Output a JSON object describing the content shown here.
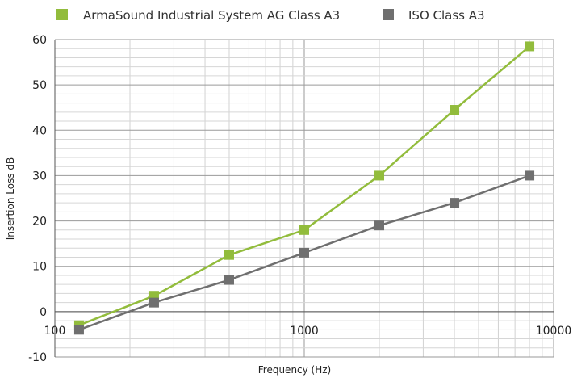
{
  "chart_data": {
    "type": "line",
    "xlabel": "Frequency (Hz)",
    "ylabel": "Insertion Loss dB",
    "x_scale": "log",
    "xlim": [
      100,
      10000
    ],
    "ylim": [
      -10,
      60
    ],
    "x_ticks": [
      100,
      1000,
      10000
    ],
    "y_ticks": [
      -10,
      0,
      10,
      20,
      30,
      40,
      50,
      60
    ],
    "grid": true,
    "legend": "top",
    "x": [
      125,
      250,
      500,
      1000,
      2000,
      4000,
      8000
    ],
    "series": [
      {
        "name": "ArmaSound Industrial System AG Class A3",
        "color": "#92bc3c",
        "values": [
          -3,
          3.5,
          12.5,
          18,
          30,
          44.5,
          58.5
        ]
      },
      {
        "name": "ISO Class A3",
        "color": "#6f6f6f",
        "values": [
          -4,
          2,
          7,
          13,
          19,
          24,
          30
        ]
      }
    ]
  }
}
